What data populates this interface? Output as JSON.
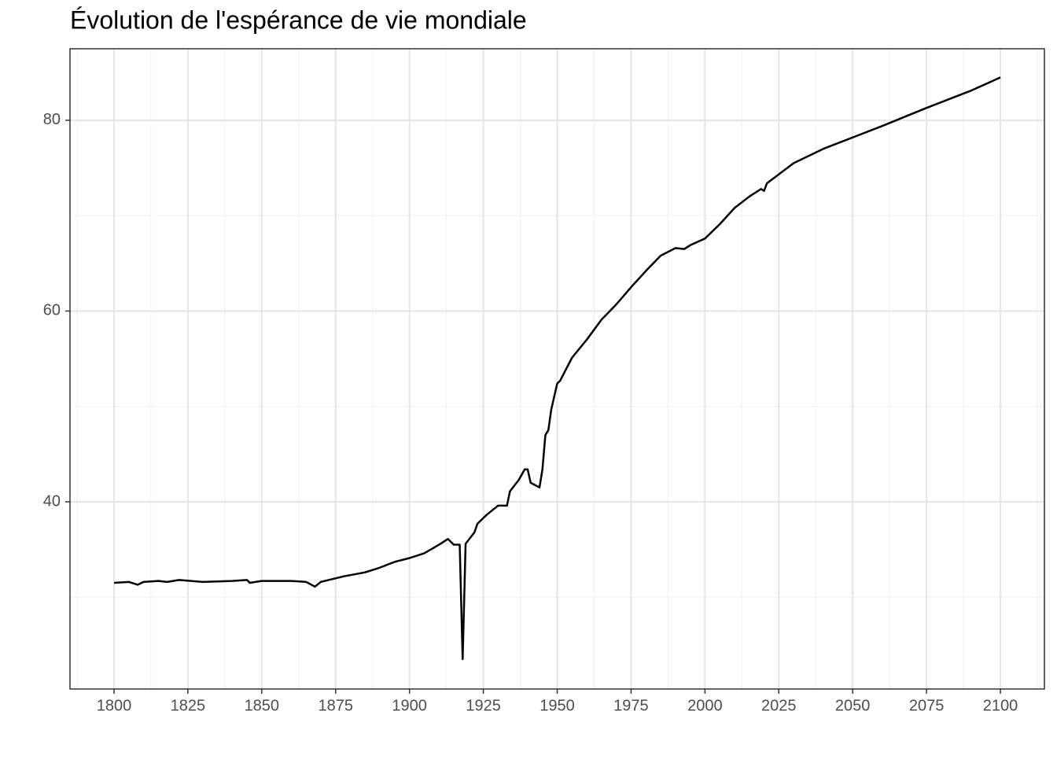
{
  "chart_data": {
    "type": "line",
    "title": "Évolution de l'espérance de vie mondiale",
    "x": [
      1800,
      1805,
      1808,
      1810,
      1815,
      1818,
      1822,
      1830,
      1840,
      1845,
      1846,
      1850,
      1860,
      1865,
      1868,
      1870,
      1878,
      1885,
      1890,
      1895,
      1900,
      1905,
      1910,
      1913,
      1915,
      1917,
      1918,
      1919,
      1922,
      1923,
      1926,
      1930,
      1933,
      1934,
      1937,
      1939,
      1940,
      1941,
      1944,
      1945,
      1946,
      1947,
      1948,
      1950,
      1951,
      1955,
      1960,
      1965,
      1970,
      1975,
      1980,
      1985,
      1990,
      1993,
      1995,
      2000,
      2005,
      2010,
      2015,
      2019,
      2020,
      2021,
      2030,
      2040,
      2050,
      2060,
      2075,
      2090,
      2100
    ],
    "series": [
      {
        "name": "Espérance de vie",
        "color": "#000000",
        "values": [
          31.5,
          31.6,
          31.3,
          31.6,
          31.7,
          31.6,
          31.8,
          31.6,
          31.7,
          31.8,
          31.5,
          31.7,
          31.7,
          31.6,
          31.1,
          31.6,
          32.2,
          32.6,
          33.1,
          33.7,
          34.1,
          34.6,
          35.5,
          36.1,
          35.5,
          35.5,
          23.5,
          35.6,
          36.8,
          37.7,
          38.6,
          39.6,
          39.6,
          41.1,
          42.3,
          43.4,
          43.4,
          42.0,
          41.5,
          43.4,
          47.0,
          47.5,
          49.7,
          52.4,
          52.7,
          55.1,
          57.0,
          59.1,
          60.7,
          62.5,
          64.2,
          65.8,
          66.6,
          66.5,
          66.9,
          67.6,
          69.1,
          70.8,
          72.0,
          72.8,
          72.6,
          73.4,
          75.5,
          77.0,
          78.2,
          79.4,
          81.3,
          83.1,
          84.5
        ]
      }
    ],
    "xlim": [
      1785.1,
      2114.9
    ],
    "ylim": [
      20.37,
      87.5
    ],
    "xticks": [
      1800,
      1825,
      1850,
      1875,
      1900,
      1925,
      1950,
      1975,
      2000,
      2025,
      2050,
      2075,
      2100
    ],
    "yticks": [
      40,
      60,
      80
    ],
    "grid": true
  }
}
